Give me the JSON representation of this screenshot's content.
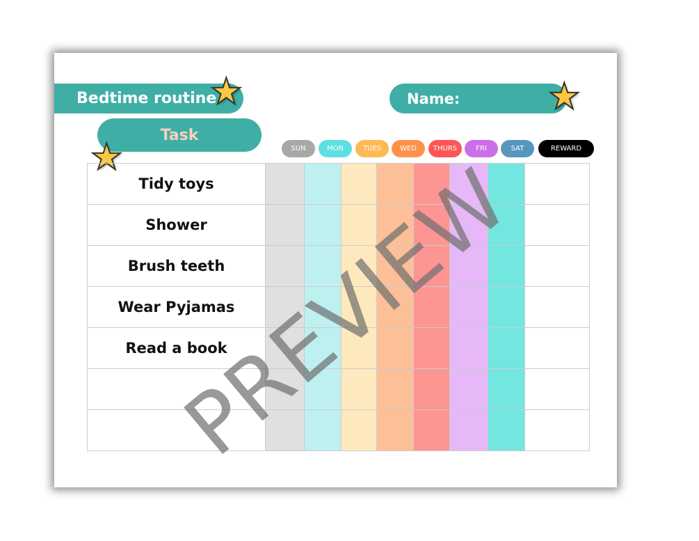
{
  "title": "Bedtime routine",
  "name_label": "Name:",
  "task_header": "Task",
  "days": [
    {
      "label": "SUN",
      "color": "#a8a8a8",
      "col": "#e0e0e0"
    },
    {
      "label": "MON",
      "color": "#5ddfe3",
      "col": "#bff0f0"
    },
    {
      "label": "TUES",
      "color": "#feb955",
      "col": "#fde9bd"
    },
    {
      "label": "WED",
      "color": "#fe914a",
      "col": "#fdbf98"
    },
    {
      "label": "THURS",
      "color": "#fe5656",
      "col": "#fd9593"
    },
    {
      "label": "FRI",
      "color": "#cb6ee8",
      "col": "#e6b8f8"
    },
    {
      "label": "SAT",
      "color": "#5797bd",
      "col": "#72e6df"
    }
  ],
  "reward_label": "REWARD",
  "tasks": [
    "Tidy toys",
    "Shower",
    "Brush teeth",
    "Wear Pyjamas",
    "Read a book",
    "",
    ""
  ],
  "watermark": "PREVIEW",
  "accent": "#3fafa6"
}
